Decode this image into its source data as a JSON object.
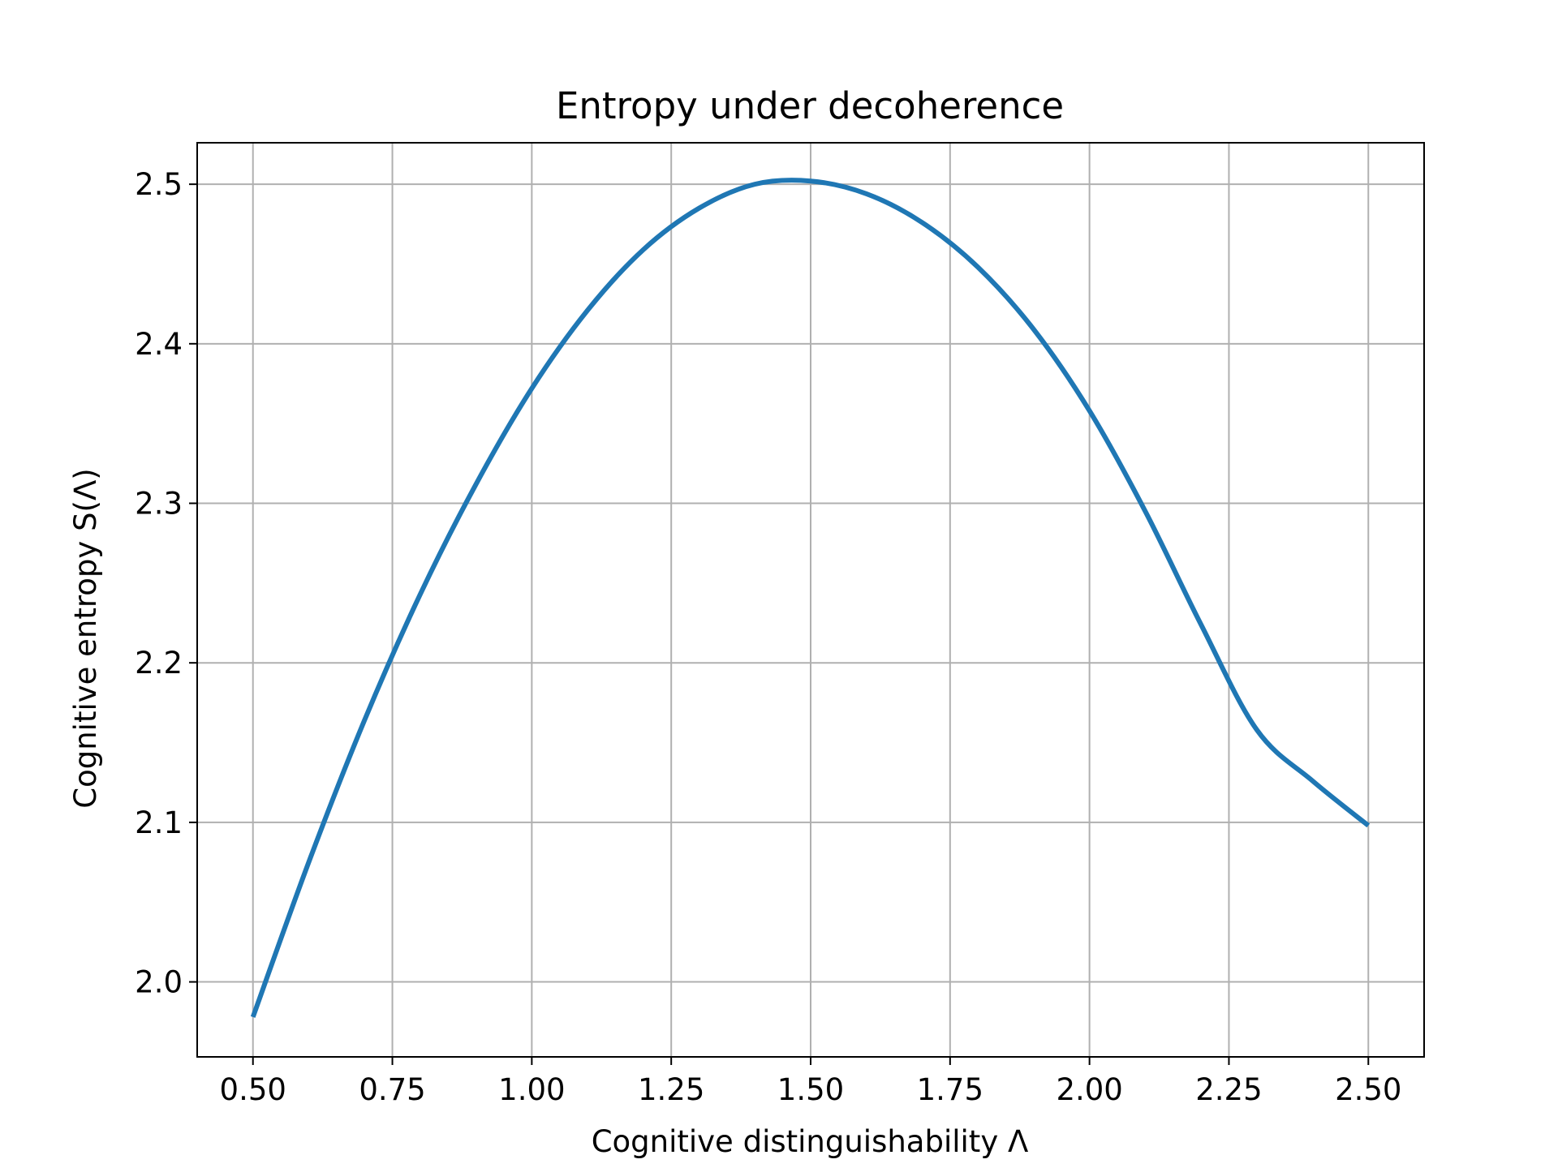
{
  "chart_data": {
    "type": "line",
    "title": "Entropy under decoherence",
    "xlabel": "Cognitive distinguishability Λ",
    "ylabel": "Cognitive entropy S(Λ)",
    "xlim": [
      0.4,
      2.6
    ],
    "ylim": [
      1.953,
      2.526
    ],
    "grid": true,
    "x_ticks": [
      0.5,
      0.75,
      1.0,
      1.25,
      1.5,
      1.75,
      2.0,
      2.25,
      2.5
    ],
    "x_tick_labels": [
      "0.50",
      "0.75",
      "1.00",
      "1.25",
      "1.50",
      "1.75",
      "2.00",
      "2.25",
      "2.50"
    ],
    "y_ticks": [
      2.0,
      2.1,
      2.2,
      2.3,
      2.4,
      2.5
    ],
    "y_tick_labels": [
      "2.0",
      "2.1",
      "2.2",
      "2.3",
      "2.4",
      "2.5"
    ],
    "series": [
      {
        "name": "S(Λ)",
        "color": "#1f77b4",
        "x": [
          0.5,
          0.6,
          0.7,
          0.8,
          0.9,
          1.0,
          1.1,
          1.2,
          1.3,
          1.4,
          1.5,
          1.6,
          1.7,
          1.8,
          1.9,
          2.0,
          2.1,
          2.2,
          2.3,
          2.4,
          2.5
        ],
        "y": [
          1.978,
          2.075,
          2.164,
          2.243,
          2.312,
          2.372,
          2.421,
          2.459,
          2.485,
          2.5,
          2.502,
          2.494,
          2.476,
          2.448,
          2.409,
          2.358,
          2.295,
          2.224,
          2.158,
          2.126,
          2.098
        ]
      }
    ]
  }
}
